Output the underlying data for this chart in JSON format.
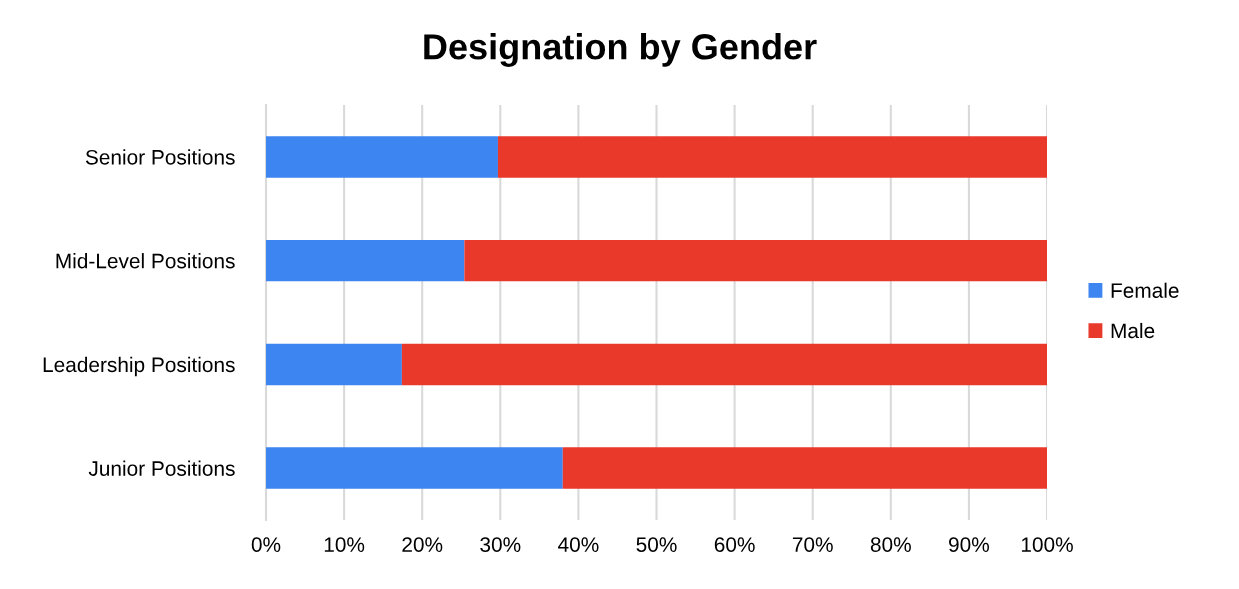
{
  "chart_data": {
    "type": "bar",
    "title": "Designation by Gender",
    "orientation": "horizontal",
    "stacked": true,
    "categories": [
      "Senior Positions",
      "Mid-Level Positions",
      "Leadership Positions",
      "Junior Positions"
    ],
    "series": [
      {
        "name": "Female",
        "color": "#3d85f0",
        "values": [
          29.7,
          25.4,
          17.4,
          38.0
        ]
      },
      {
        "name": "Male",
        "color": "#e8392b",
        "values": [
          70.3,
          74.6,
          82.6,
          62.0
        ]
      }
    ],
    "xlim": [
      0,
      100
    ],
    "xticks": [
      {
        "value": 0,
        "label": "0%"
      },
      {
        "value": 10,
        "label": "10%"
      },
      {
        "value": 20,
        "label": "20%"
      },
      {
        "value": 30,
        "label": "30%"
      },
      {
        "value": 40,
        "label": "40%"
      },
      {
        "value": 50,
        "label": "50%"
      },
      {
        "value": 60,
        "label": "60%"
      },
      {
        "value": 70,
        "label": "70%"
      },
      {
        "value": 80,
        "label": "80%"
      },
      {
        "value": 90,
        "label": "90%"
      },
      {
        "value": 100,
        "label": "100%"
      }
    ],
    "grid": "x",
    "legend": "right"
  }
}
